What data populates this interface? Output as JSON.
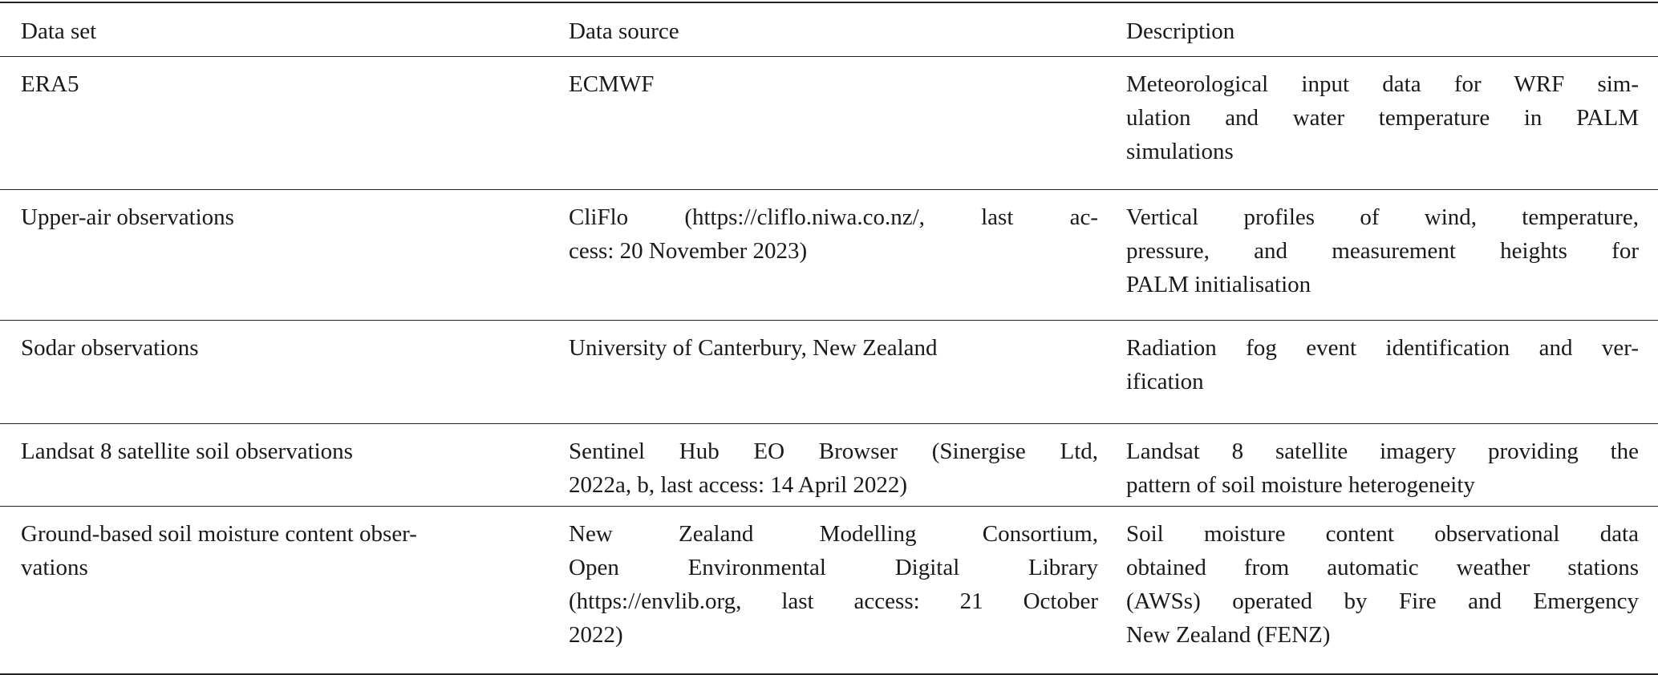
{
  "table": {
    "headers": [
      "Data set",
      "Data source",
      "Description"
    ],
    "rows": [
      {
        "cells": [
          [
            "ERA5"
          ],
          [
            "ECMWF"
          ],
          [
            "Meteorological input data for WRF sim-",
            "ulation and water temperature in PALM",
            "simulations"
          ]
        ]
      },
      {
        "cells": [
          [
            "Upper-air observations"
          ],
          [
            "CliFlo (https://cliflo.niwa.co.nz/, last ac-",
            "cess: 20 November 2023)"
          ],
          [
            "Vertical profiles of wind, temperature,",
            "pressure, and measurement heights for",
            "PALM initialisation"
          ]
        ]
      },
      {
        "cells": [
          [
            "Sodar observations"
          ],
          [
            "University of Canterbury, New Zealand"
          ],
          [
            "Radiation fog event identification and ver-",
            "ification"
          ]
        ]
      },
      {
        "cells": [
          [
            "Landsat 8 satellite soil observations"
          ],
          [
            "Sentinel Hub EO Browser (Sinergise Ltd,",
            "2022a, b, last access: 14 April 2022)"
          ],
          [
            "Landsat 8 satellite imagery providing the",
            "pattern of soil moisture heterogeneity"
          ]
        ]
      },
      {
        "cells": [
          [
            "Ground-based soil moisture content obser-",
            "vations"
          ],
          [
            "New Zealand Modelling Consortium,",
            "Open Environmental Digital Library",
            "(https://envlib.org, last access: 21 October",
            "2022)"
          ],
          [
            "Soil moisture content observational data",
            "obtained from automatic weather stations",
            "(AWSs) operated by Fire and Emergency",
            "New Zealand (FENZ)"
          ]
        ]
      }
    ]
  }
}
